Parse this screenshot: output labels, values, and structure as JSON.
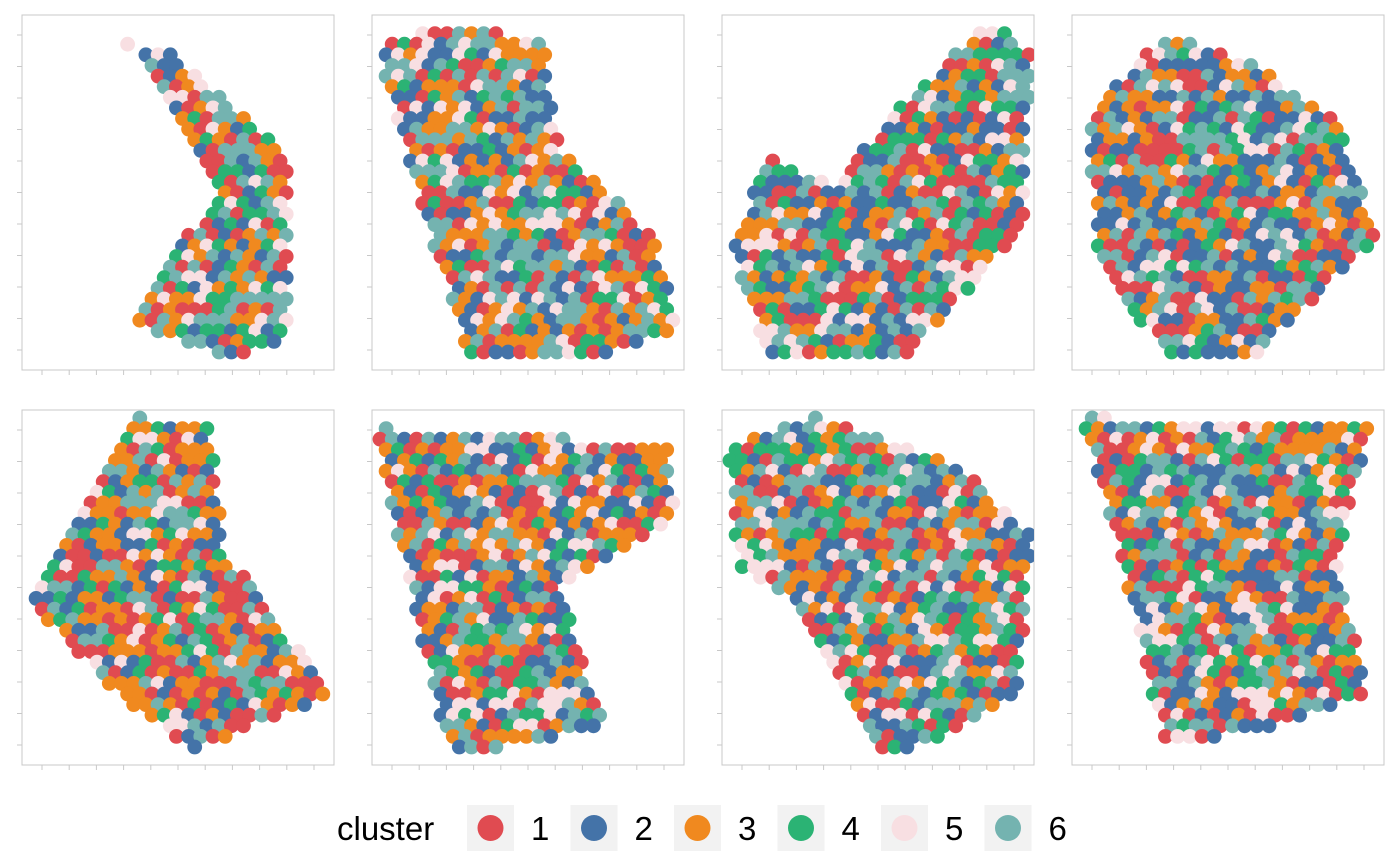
{
  "chart_data": {
    "type": "scatter",
    "subtype": "spatial-spot-plot",
    "layout": {
      "rows": 2,
      "cols": 4
    },
    "axes": {
      "tick_labels": "none",
      "grid": false
    },
    "legend": {
      "title": "cluster",
      "placement": "bottom",
      "entries": [
        {
          "label": "1",
          "color": "#E04B51"
        },
        {
          "label": "2",
          "color": "#4473A8"
        },
        {
          "label": "3",
          "color": "#F0891F"
        },
        {
          "label": "4",
          "color": "#2BB374"
        },
        {
          "label": "5",
          "color": "#F8DFE2"
        },
        {
          "label": "6",
          "color": "#74B3B0"
        }
      ]
    },
    "panels": [
      {
        "shape": [
          [
            0.02,
            0.97
          ],
          [
            0.47,
            0.9
          ],
          [
            0.85,
            0.6
          ],
          [
            0.85,
            0.1
          ],
          [
            0.7,
            0.03
          ],
          [
            0.35,
            0.13
          ],
          [
            0.62,
            0.5
          ],
          [
            0.33,
            0.93
          ]
        ],
        "cut": null,
        "weights": [
          0.19,
          0.16,
          0.19,
          0.12,
          0.12,
          0.22
        ]
      },
      {
        "shape": [
          [
            0.02,
            0.9
          ],
          [
            0.2,
            0.98
          ],
          [
            0.55,
            0.93
          ],
          [
            0.6,
            0.62
          ],
          [
            0.9,
            0.38
          ],
          [
            0.98,
            0.12
          ],
          [
            0.7,
            0.02
          ],
          [
            0.3,
            0.05
          ]
        ],
        "cut": null,
        "weights": [
          0.2,
          0.2,
          0.16,
          0.1,
          0.14,
          0.2
        ]
      },
      {
        "shape": [
          [
            0.03,
            0.35
          ],
          [
            0.15,
            0.6
          ],
          [
            0.35,
            0.52
          ],
          [
            0.55,
            0.72
          ],
          [
            0.85,
            0.98
          ],
          [
            0.99,
            0.9
          ],
          [
            0.97,
            0.4
          ],
          [
            0.6,
            0.05
          ],
          [
            0.15,
            0.03
          ]
        ],
        "cut": null,
        "weights": [
          0.21,
          0.2,
          0.15,
          0.16,
          0.1,
          0.18
        ]
      },
      {
        "shape": [
          [
            0.05,
            0.72
          ],
          [
            0.3,
            0.95
          ],
          [
            0.6,
            0.85
          ],
          [
            0.85,
            0.7
          ],
          [
            0.98,
            0.38
          ],
          [
            0.6,
            0.05
          ],
          [
            0.3,
            0.05
          ],
          [
            0.08,
            0.3
          ]
        ],
        "cut": null,
        "weights": [
          0.2,
          0.25,
          0.17,
          0.1,
          0.1,
          0.18
        ]
      },
      {
        "shape": [
          [
            0.35,
            0.98
          ],
          [
            0.03,
            0.45
          ],
          [
            0.3,
            0.2
          ],
          [
            0.55,
            0.04
          ],
          [
            0.99,
            0.2
          ],
          [
            0.65,
            0.6
          ],
          [
            0.6,
            0.97
          ]
        ],
        "cut": null,
        "weights": [
          0.22,
          0.18,
          0.2,
          0.12,
          0.1,
          0.18
        ]
      },
      {
        "shape": [
          [
            0.01,
            0.95
          ],
          [
            0.95,
            0.9
          ],
          [
            0.97,
            0.7
          ],
          [
            0.6,
            0.5
          ],
          [
            0.75,
            0.1
          ],
          [
            0.25,
            0.03
          ],
          [
            0.12,
            0.5
          ]
        ],
        "cut": null,
        "weights": [
          0.2,
          0.17,
          0.17,
          0.12,
          0.16,
          0.18
        ]
      },
      {
        "shape": [
          [
            0.02,
            0.9
          ],
          [
            0.3,
            0.98
          ],
          [
            0.75,
            0.85
          ],
          [
            0.99,
            0.65
          ],
          [
            0.95,
            0.2
          ],
          [
            0.65,
            0.06
          ],
          [
            0.5,
            0.03
          ],
          [
            0.25,
            0.45
          ],
          [
            0.05,
            0.55
          ]
        ],
        "cut": null,
        "weights": [
          0.19,
          0.17,
          0.17,
          0.12,
          0.15,
          0.2
        ]
      },
      {
        "shape": [
          [
            0.03,
            0.98
          ],
          [
            0.95,
            0.95
          ],
          [
            0.85,
            0.55
          ],
          [
            0.95,
            0.2
          ],
          [
            0.6,
            0.1
          ],
          [
            0.3,
            0.05
          ],
          [
            0.15,
            0.6
          ]
        ],
        "cut": null,
        "weights": [
          0.22,
          0.16,
          0.18,
          0.13,
          0.13,
          0.18
        ]
      }
    ]
  }
}
